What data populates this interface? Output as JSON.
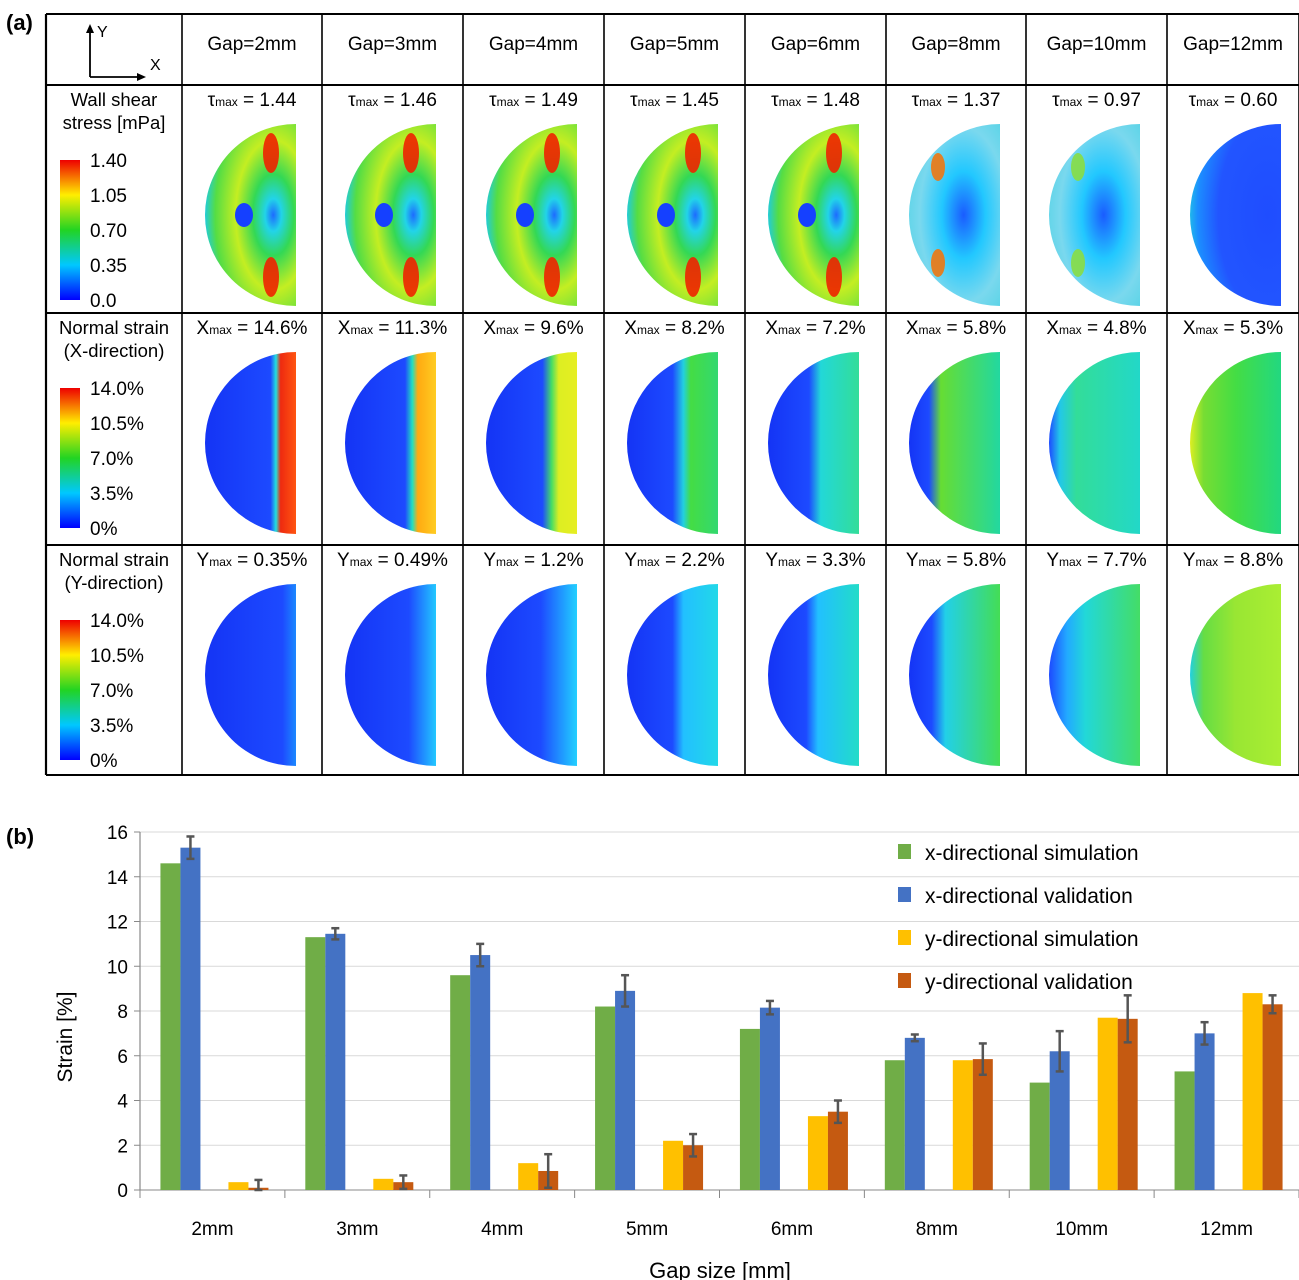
{
  "panel_a": {
    "label": "(a)",
    "axes_icon": {
      "y": "Y",
      "x": "X"
    },
    "columns": [
      "Gap=2mm",
      "Gap=3mm",
      "Gap=4mm",
      "Gap=5mm",
      "Gap=6mm",
      "Gap=8mm",
      "Gap=10mm",
      "Gap=12mm"
    ],
    "rows": [
      {
        "id": "wss",
        "title_lines": [
          "Wall shear",
          "stress [mPa]"
        ],
        "colorbar_ticks": [
          "1.40",
          "1.05",
          "0.70",
          "0.35",
          "0.0"
        ],
        "max_symbol": "τ",
        "max_values": [
          "1.44",
          "1.46",
          "1.49",
          "1.45",
          "1.48",
          "1.37",
          "0.97",
          "0.60"
        ],
        "max_units": [
          "",
          "",
          "",
          "",
          "",
          "",
          "",
          ""
        ]
      },
      {
        "id": "strain-x",
        "title_lines": [
          "Normal strain",
          "(X-direction)"
        ],
        "colorbar_ticks": [
          "14.0%",
          "10.5%",
          "7.0%",
          "3.5%",
          "0%"
        ],
        "max_symbol": "X",
        "max_values": [
          "14.6%",
          "11.3%",
          "9.6%",
          "8.2%",
          "7.2%",
          "5.8%",
          "4.8%",
          "5.3%"
        ]
      },
      {
        "id": "strain-y",
        "title_lines": [
          "Normal strain",
          "(Y-direction)"
        ],
        "colorbar_ticks": [
          "14.0%",
          "10.5%",
          "7.0%",
          "3.5%",
          "0%"
        ],
        "max_symbol": "Y",
        "max_values": [
          "0.35%",
          "0.49%",
          "1.2%",
          "2.2%",
          "3.3%",
          "5.8%",
          "7.7%",
          "8.8%"
        ]
      }
    ],
    "max_subscript": "max"
  },
  "chart_data": {
    "label": "(b)",
    "type": "bar",
    "categories": [
      "2mm",
      "3mm",
      "4mm",
      "5mm",
      "6mm",
      "8mm",
      "10mm",
      "12mm"
    ],
    "xlabel": "Gap size [mm]",
    "ylabel": "Strain [%]",
    "ylim": [
      0,
      16
    ],
    "yticks": [
      0,
      2,
      4,
      6,
      8,
      10,
      12,
      14,
      16
    ],
    "grid": true,
    "legend_position": "top-right",
    "series": [
      {
        "name": "x-directional simulation",
        "color": "#70ad47",
        "values": [
          14.6,
          11.3,
          9.6,
          8.2,
          7.2,
          5.8,
          4.8,
          5.3
        ]
      },
      {
        "name": "x-directional validation",
        "color": "#4472c4",
        "values": [
          15.3,
          11.45,
          10.5,
          8.9,
          8.15,
          6.8,
          6.2,
          7.0
        ],
        "errors": [
          0.5,
          0.25,
          0.5,
          0.7,
          0.3,
          0.15,
          0.9,
          0.5
        ]
      },
      {
        "name": "y-directional simulation",
        "color": "#ffc000",
        "values": [
          0.35,
          0.5,
          1.2,
          2.2,
          3.3,
          5.8,
          7.7,
          8.8
        ]
      },
      {
        "name": "y-directional validation",
        "color": "#c55a11",
        "values": [
          0.1,
          0.35,
          0.85,
          2.0,
          3.5,
          5.85,
          7.65,
          8.3
        ],
        "errors": [
          0.35,
          0.3,
          0.75,
          0.5,
          0.5,
          0.7,
          1.05,
          0.4
        ]
      }
    ]
  }
}
